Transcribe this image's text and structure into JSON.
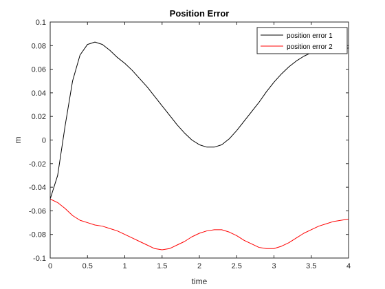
{
  "chart_data": {
    "type": "line",
    "title": "Position Error",
    "xlabel": "time",
    "ylabel": "m",
    "xlim": [
      0,
      4
    ],
    "ylim": [
      -0.1,
      0.1
    ],
    "xticks": [
      0,
      0.5,
      1,
      1.5,
      2,
      2.5,
      3,
      3.5,
      4
    ],
    "xtick_labels": [
      "0",
      "0.5",
      "1",
      "1.5",
      "2",
      "2.5",
      "3",
      "3.5",
      "4"
    ],
    "yticks": [
      -0.1,
      -0.08,
      -0.06,
      -0.04,
      -0.02,
      0,
      0.02,
      0.04,
      0.06,
      0.08,
      0.1
    ],
    "ytick_labels": [
      "-0.1",
      "-0.08",
      "-0.06",
      "-0.04",
      "-0.02",
      "0",
      "0.02",
      "0.04",
      "0.06",
      "0.08",
      "0.1"
    ],
    "grid": false,
    "legend_position": "top-right",
    "series": [
      {
        "name": "position error 1",
        "color": "#000000",
        "x": [
          0,
          0.1,
          0.2,
          0.3,
          0.4,
          0.5,
          0.6,
          0.7,
          0.8,
          0.9,
          1.0,
          1.1,
          1.2,
          1.3,
          1.4,
          1.5,
          1.6,
          1.7,
          1.8,
          1.9,
          2.0,
          2.1,
          2.2,
          2.3,
          2.4,
          2.5,
          2.6,
          2.7,
          2.8,
          2.9,
          3.0,
          3.1,
          3.2,
          3.3,
          3.4,
          3.5,
          3.6,
          3.7,
          3.8,
          3.9,
          4.0
        ],
        "y": [
          -0.05,
          -0.03,
          0.012,
          0.05,
          0.072,
          0.081,
          0.083,
          0.081,
          0.076,
          0.07,
          0.065,
          0.059,
          0.052,
          0.045,
          0.037,
          0.029,
          0.021,
          0.013,
          0.006,
          0.0,
          -0.004,
          -0.006,
          -0.006,
          -0.004,
          0.001,
          0.008,
          0.016,
          0.024,
          0.032,
          0.041,
          0.049,
          0.056,
          0.062,
          0.067,
          0.071,
          0.074,
          0.076,
          0.077,
          0.077,
          0.077,
          0.078
        ]
      },
      {
        "name": "position error 2",
        "color": "#ff0000",
        "x": [
          0,
          0.1,
          0.2,
          0.3,
          0.4,
          0.5,
          0.6,
          0.7,
          0.8,
          0.9,
          1.0,
          1.1,
          1.2,
          1.3,
          1.4,
          1.5,
          1.6,
          1.7,
          1.8,
          1.9,
          2.0,
          2.1,
          2.2,
          2.3,
          2.4,
          2.5,
          2.6,
          2.7,
          2.8,
          2.9,
          3.0,
          3.1,
          3.2,
          3.3,
          3.4,
          3.5,
          3.6,
          3.7,
          3.8,
          3.9,
          4.0
        ],
        "y": [
          -0.05,
          -0.053,
          -0.058,
          -0.064,
          -0.068,
          -0.07,
          -0.072,
          -0.073,
          -0.075,
          -0.077,
          -0.08,
          -0.083,
          -0.086,
          -0.089,
          -0.092,
          -0.093,
          -0.092,
          -0.089,
          -0.086,
          -0.082,
          -0.079,
          -0.077,
          -0.076,
          -0.076,
          -0.078,
          -0.081,
          -0.085,
          -0.088,
          -0.091,
          -0.092,
          -0.092,
          -0.09,
          -0.087,
          -0.083,
          -0.079,
          -0.076,
          -0.073,
          -0.071,
          -0.069,
          -0.068,
          -0.067
        ]
      }
    ]
  }
}
